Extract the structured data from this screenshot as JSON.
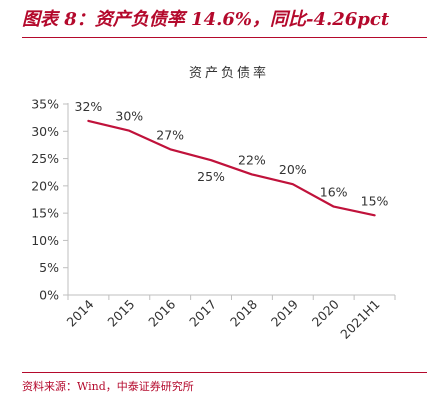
{
  "figure": {
    "title": "图表 8：资产负债率 14.6%，同比-4.26pct",
    "source": "资料来源：Wind，中泰证券研究所"
  },
  "colors": {
    "accent": "#b4092c",
    "series_line": "#c0123b",
    "axis": "#bfbfbf",
    "text": "#333333"
  },
  "chart_data": {
    "type": "line",
    "title": "资产负债率",
    "categories": [
      "2014",
      "2015",
      "2016",
      "2017",
      "2018",
      "2019",
      "2020",
      "2021H1"
    ],
    "series": [
      {
        "name": "资产负债率",
        "values": [
          31.9,
          30.1,
          26.7,
          24.7,
          22.1,
          20.3,
          16.2,
          14.6
        ],
        "labels": [
          "32%",
          "30%",
          "27%",
          "25%",
          "22%",
          "20%",
          "16%",
          "15%"
        ]
      }
    ],
    "ylim": [
      0,
      35
    ],
    "yticks": [
      "0%",
      "5%",
      "10%",
      "15%",
      "20%",
      "25%",
      "30%",
      "35%"
    ],
    "ytick_values": [
      0,
      5,
      10,
      15,
      20,
      25,
      30,
      35
    ],
    "label_positions": [
      "above",
      "above",
      "above",
      "below",
      "above",
      "above",
      "above",
      "above"
    ],
    "grid": false,
    "legend": "none"
  }
}
